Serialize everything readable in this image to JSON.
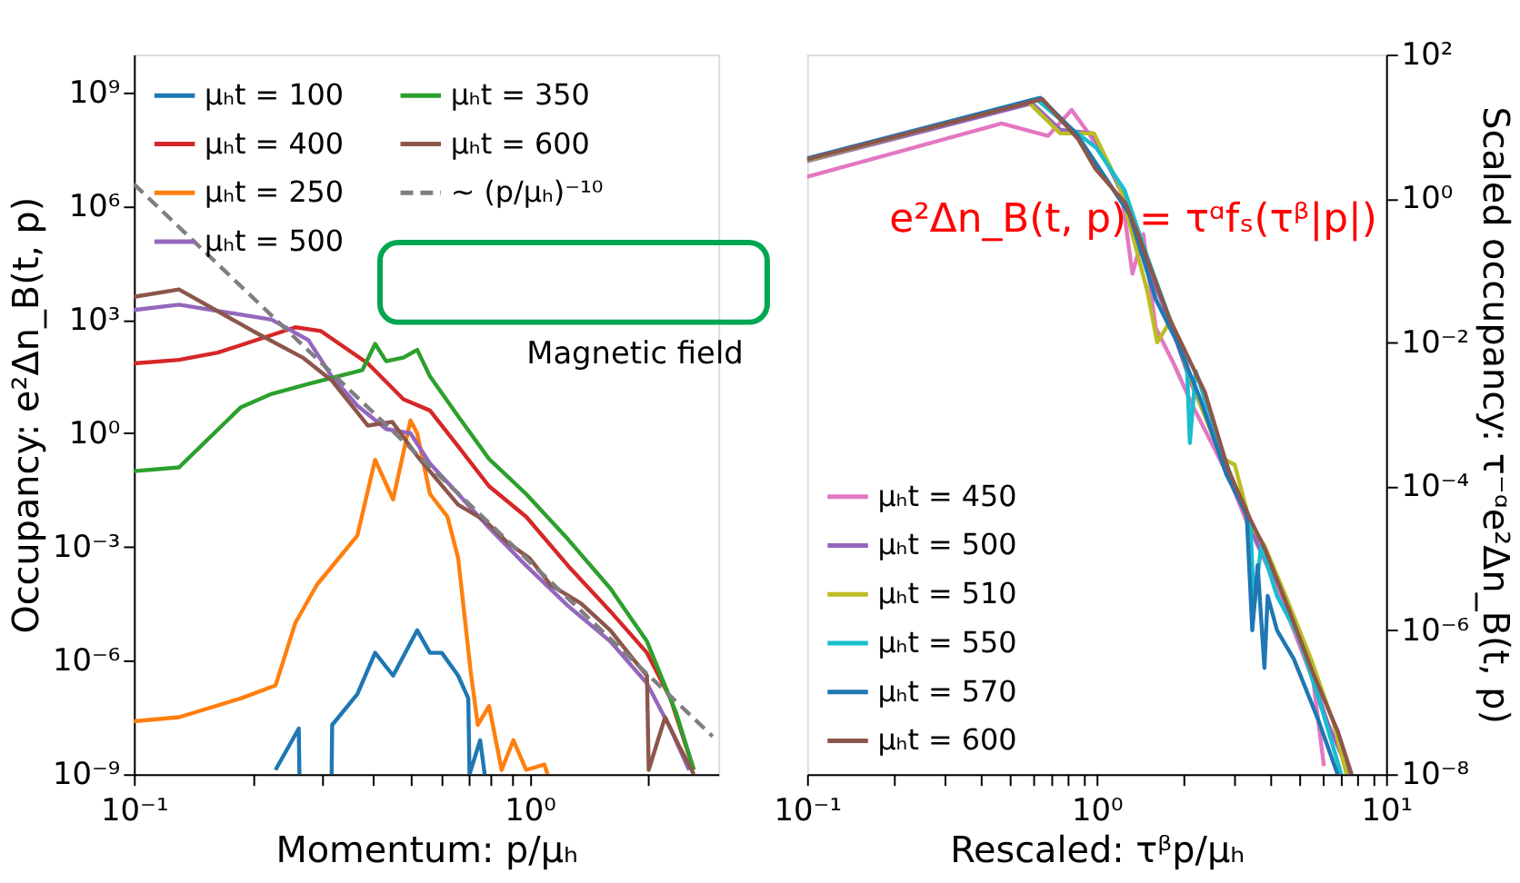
{
  "chart_data": [
    {
      "type": "line",
      "xlabel": "Momentum: p/μₕ",
      "ylabel": "Occupancy: e²Δn_B(t, p)",
      "log": "xy",
      "grid": false,
      "legend": "top left",
      "xlim": [
        0.1,
        3.0
      ],
      "xticks": [
        {
          "value": 0.1,
          "label": "10⁻¹"
        },
        {
          "value": 0.2,
          "label": null
        },
        {
          "value": 0.3,
          "label": null
        },
        {
          "value": 0.4,
          "label": null
        },
        {
          "value": 0.5,
          "label": null
        },
        {
          "value": 0.6,
          "label": null
        },
        {
          "value": 0.7,
          "label": null
        },
        {
          "value": 0.8,
          "label": null
        },
        {
          "value": 0.9,
          "label": null
        },
        {
          "value": 1,
          "label": "10⁰"
        },
        {
          "value": 2,
          "label": null
        }
      ],
      "ylim": [
        1e-09,
        10000000000.0
      ],
      "yticks": [
        {
          "value": 1000000000.0,
          "label": "10⁹"
        },
        {
          "value": 1000000.0,
          "label": "10⁶"
        },
        {
          "value": 1000.0,
          "label": "10³"
        },
        {
          "value": 1,
          "label": "10⁰"
        },
        {
          "value": 0.001,
          "label": "10⁻³"
        },
        {
          "value": 1e-06,
          "label": "10⁻⁶"
        },
        {
          "value": 1e-09,
          "label": "10⁻⁹"
        }
      ],
      "annotations": [
        "Magnetic field"
      ],
      "series": [
        {
          "name": "μₕt = 100",
          "type": "line",
          "color": "#1f77b4",
          "line_style": "solid",
          "x": [
            0.228,
            0.261,
            0.262,
            0.29,
            0.316,
            0.317,
            0.367,
            0.407,
            0.452,
            0.52,
            0.56,
            0.6,
            0.66,
            0.7,
            0.705,
            0.75,
            0.77
          ],
          "values": [
            1.3e-09,
            1.6e-08,
            1e-09,
            null,
            1e-09,
            2e-08,
            1.3e-07,
            1.6e-06,
            4e-07,
            6.3e-06,
            1.6e-06,
            1.6e-06,
            4e-07,
            1e-07,
            1e-09,
            7.9e-09,
            1e-09
          ]
        },
        {
          "name": "μₕt = 400",
          "type": "line",
          "color": "#d62728",
          "line_style": "solid",
          "x": [
            0.1,
            0.13,
            0.163,
            0.256,
            0.297,
            0.39,
            0.48,
            0.56,
            0.66,
            0.79,
            0.98,
            1.25,
            1.6,
            1.98,
            2.27,
            2.6
          ],
          "values": [
            70,
            87,
            135,
            630,
            500,
            70,
            7.9,
            4.0,
            0.45,
            0.04,
            0.0063,
            0.00032,
            2e-05,
            1.6e-06,
            1e-07,
            1.3e-09
          ]
        },
        {
          "name": "μₕt = 250",
          "type": "line",
          "color": "#ff7f0e",
          "line_style": "solid",
          "x": [
            0.1,
            0.13,
            0.186,
            0.228,
            0.256,
            0.29,
            0.367,
            0.407,
            0.452,
            0.5,
            0.52,
            0.56,
            0.62,
            0.66,
            0.71,
            0.74,
            0.79,
            0.85,
            0.91,
            0.98,
            1.09,
            1.11
          ],
          "values": [
            2.5e-08,
            3.2e-08,
            1e-07,
            2.2e-07,
            1e-05,
            0.0001,
            0.002,
            0.2,
            0.018,
            2.2,
            1.0,
            0.025,
            0.0063,
            0.0005,
            5e-07,
            2e-08,
            6.3e-08,
            1.3e-09,
            7.9e-09,
            1.3e-09,
            1.8e-09,
            1e-09
          ]
        },
        {
          "name": "μₕt = 500",
          "type": "line",
          "color": "#9467bd",
          "line_style": "solid",
          "x": [
            0.1,
            0.13,
            0.223,
            0.276,
            0.316,
            0.367,
            0.434,
            0.5,
            0.56,
            0.66,
            0.79,
            0.98,
            1.25,
            1.6,
            1.98,
            2.27,
            2.53
          ],
          "values": [
            1800.0,
            2500.0,
            1000.0,
            290,
            32,
            5.4,
            1.3,
            1.0,
            0.16,
            0.025,
            0.0032,
            0.00032,
            2.8e-05,
            3.2e-06,
            2.5e-07,
            1.6e-08,
            1.3e-09
          ]
        },
        {
          "name": "μₕt = 350",
          "type": "line",
          "color": "#2ca02c",
          "line_style": "solid",
          "x": [
            0.1,
            0.13,
            0.186,
            0.223,
            0.276,
            0.378,
            0.407,
            0.434,
            0.48,
            0.52,
            0.56,
            0.66,
            0.79,
            0.98,
            1.25,
            1.6,
            1.98,
            2.35,
            2.6
          ],
          "values": [
            0.1,
            0.126,
            4.8,
            11,
            20,
            47,
            230,
            80,
            100,
            160,
            32,
            2.8,
            0.21,
            0.025,
            0.0016,
            8e-05,
            3.2e-06,
            4e-08,
            1.3e-09
          ]
        },
        {
          "name": "μₕt = 600",
          "type": "line",
          "color": "#8c564b",
          "line_style": "solid",
          "x": [
            0.1,
            0.13,
            0.2,
            0.267,
            0.316,
            0.39,
            0.45,
            0.52,
            0.66,
            0.77,
            0.88,
            1.0,
            1.13,
            1.35,
            1.6,
            1.84,
            1.98,
            2.0,
            2.2,
            2.4,
            2.6
          ],
          "values": [
            4000.0,
            6300.0,
            500,
            100,
            25,
            1.6,
            2,
            0.25,
            0.013,
            0.005,
            0.0013,
            0.0005,
            0.0001,
            3.2e-05,
            6.3e-06,
            1e-06,
            4e-07,
            1.3e-09,
            3.2e-08,
            5e-09,
            1e-09
          ]
        },
        {
          "name": "~ (p/μₕ)⁻¹⁰",
          "type": "line",
          "color": "#7f7f7f",
          "line_style": "dashed",
          "x": [
            0.1,
            2.9
          ],
          "values": [
            3800000.0,
            1e-08
          ]
        }
      ]
    },
    {
      "type": "line",
      "xlabel": "Rescaled: τᵝp/μₕ",
      "ylabel": "Scaled occupancy: τ⁻ᵅe²Δn_B(t, p)",
      "log": "xy",
      "grid": false,
      "legend": "bottom left",
      "xlim": [
        0.1,
        10
      ],
      "xticks": [
        {
          "value": 0.1,
          "label": "10⁻¹"
        },
        {
          "value": 0.2,
          "label": null
        },
        {
          "value": 0.3,
          "label": null
        },
        {
          "value": 0.4,
          "label": null
        },
        {
          "value": 0.5,
          "label": null
        },
        {
          "value": 0.6,
          "label": null
        },
        {
          "value": 0.7,
          "label": null
        },
        {
          "value": 0.8,
          "label": null
        },
        {
          "value": 0.9,
          "label": null
        },
        {
          "value": 1,
          "label": "10⁰"
        },
        {
          "value": 2,
          "label": null
        },
        {
          "value": 3,
          "label": null
        },
        {
          "value": 4,
          "label": null
        },
        {
          "value": 5,
          "label": null
        },
        {
          "value": 6,
          "label": null
        },
        {
          "value": 7,
          "label": null
        },
        {
          "value": 8,
          "label": null
        },
        {
          "value": 9,
          "label": null
        },
        {
          "value": 10,
          "label": "10¹"
        }
      ],
      "ylim": [
        1e-08,
        100.0
      ],
      "yticks": [
        {
          "value": 100.0,
          "label": "10²"
        },
        {
          "value": 1,
          "label": "10⁰"
        },
        {
          "value": 0.01,
          "label": "10⁻²"
        },
        {
          "value": 0.0001,
          "label": "10⁻⁴"
        },
        {
          "value": 1e-06,
          "label": "10⁻⁶"
        },
        {
          "value": 1e-08,
          "label": "10⁻⁸"
        }
      ],
      "annotations": [
        "e²Δn_B(t, p) = τᵅfₛ(τᵝ|p|)"
      ],
      "series": [
        {
          "name": "μₕt = 450",
          "type": "line",
          "color": "#e377c2",
          "line_style": "solid",
          "x": [
            0.1,
            0.47,
            0.68,
            0.82,
            0.94,
            1.21,
            1.33,
            1.45,
            1.6,
            1.85,
            2.15,
            2.85,
            3.3,
            4.2,
            5.6,
            6.1
          ],
          "values": [
            2.0,
            11,
            7.4,
            17,
            8,
            1.5,
            0.09,
            0.32,
            0.016,
            0.005,
            0.0013,
            0.00014,
            3.2e-05,
            4e-06,
            2e-07,
            1.3e-08
          ]
        },
        {
          "name": "μₕt = 500",
          "type": "line",
          "color": "#9467bd",
          "line_style": "solid",
          "x": [
            0.1,
            0.6,
            0.75,
            0.97,
            1.25,
            1.45,
            1.75,
            2.1,
            2.6,
            3.1,
            3.6,
            4.3,
            5.2,
            6.3,
            7.5
          ],
          "values": [
            3.3,
            21,
            9,
            8,
            1.0,
            0.15,
            0.025,
            0.003,
            0.0004,
            7e-05,
            1.6e-05,
            4e-06,
            5e-07,
            5e-08,
            1e-08
          ]
        },
        {
          "name": "μₕt = 510",
          "type": "line",
          "color": "#bcbd22",
          "line_style": "solid",
          "x": [
            0.1,
            0.58,
            0.75,
            0.98,
            1.2,
            1.5,
            1.62,
            1.8,
            2.2,
            2.7,
            3.0,
            3.4,
            3.8,
            4.5,
            5.5,
            6.6,
            7.3
          ],
          "values": [
            3.4,
            22,
            8,
            8,
            1.5,
            0.05,
            0.01,
            0.02,
            0.002,
            0.00025,
            0.0002,
            3e-05,
            1.5e-05,
            3e-06,
            4e-07,
            5e-08,
            1e-08
          ]
        },
        {
          "name": "μₕt = 550",
          "type": "line",
          "color": "#17becf",
          "line_style": "solid",
          "x": [
            0.1,
            0.62,
            0.8,
            1.0,
            1.25,
            1.5,
            1.8,
            2.05,
            2.1,
            2.2,
            2.6,
            3.0,
            3.4,
            3.5,
            3.7,
            4.2,
            5.0,
            6.0,
            7.0
          ],
          "values": [
            3.5,
            24,
            10,
            5,
            1.3,
            0.15,
            0.02,
            0.005,
            0.0004,
            0.004,
            0.0005,
            0.0001,
            3e-05,
            2e-06,
            1.5e-05,
            3e-06,
            8e-07,
            8e-08,
            1e-08
          ]
        },
        {
          "name": "μₕt = 570",
          "type": "line",
          "color": "#1f77b4",
          "line_style": "solid",
          "x": [
            0.1,
            0.64,
            0.85,
            1.0,
            1.3,
            1.6,
            1.9,
            2.3,
            2.8,
            3.3,
            3.45,
            3.6,
            3.8,
            3.9,
            4.2,
            4.8,
            5.8,
            6.8
          ],
          "values": [
            3.6,
            25,
            8,
            3,
            0.6,
            0.04,
            0.01,
            0.0015,
            0.00015,
            4e-05,
            1e-06,
            8e-06,
            3e-07,
            3e-06,
            1e-06,
            4e-07,
            6e-08,
            1e-08
          ]
        },
        {
          "name": "μₕt = 600",
          "type": "line",
          "color": "#8c564b",
          "line_style": "solid",
          "x": [
            0.1,
            0.65,
            0.866,
            0.99,
            1.26,
            1.39,
            1.78,
            2.37,
            2.85,
            3.43,
            3.8,
            4.6,
            5.6,
            6.8,
            7.6
          ],
          "values": [
            3.5,
            24,
            6.6,
            2.6,
            0.85,
            0.32,
            0.022,
            0.002,
            0.00017,
            3.2e-05,
            1.4e-05,
            2e-06,
            2.5e-07,
            4e-08,
            1e-08
          ]
        }
      ]
    }
  ]
}
